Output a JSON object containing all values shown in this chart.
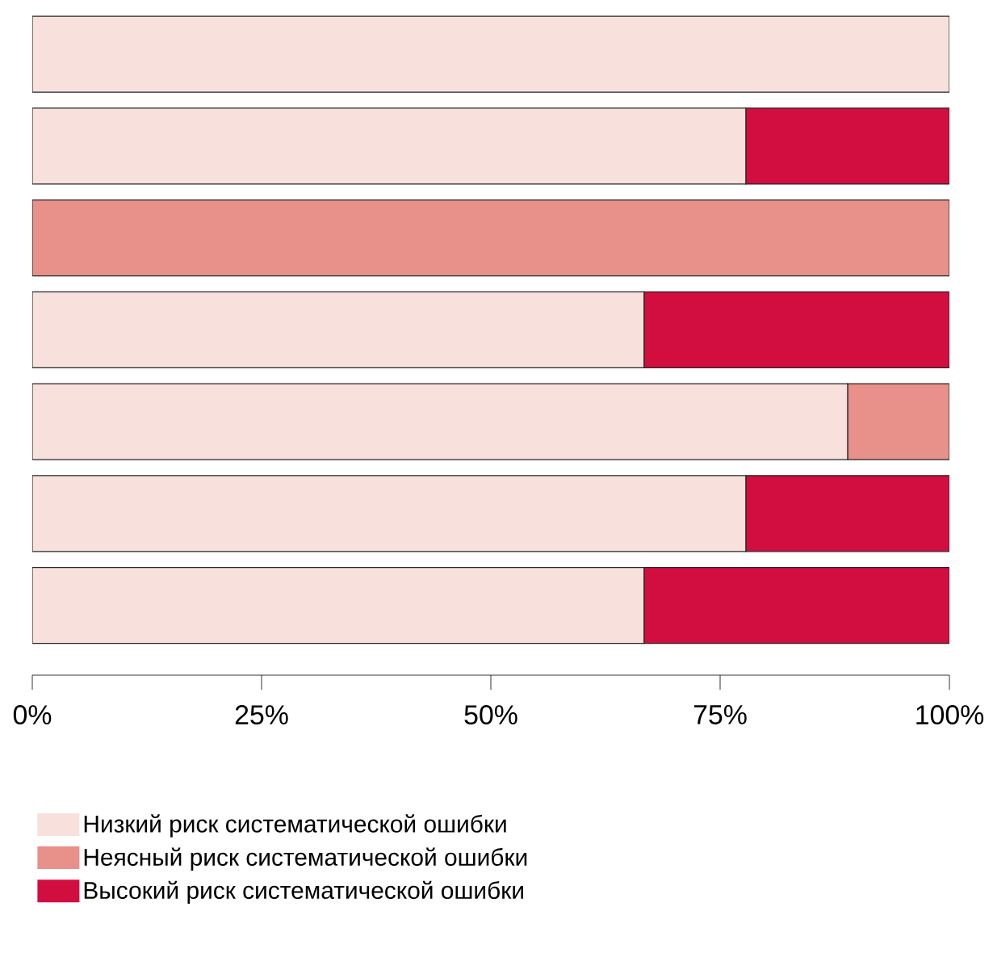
{
  "chart_data": {
    "type": "bar",
    "orientation": "horizontal",
    "stacked": true,
    "categories": [
      null,
      null,
      null,
      null,
      null,
      null,
      null
    ],
    "series": [
      {
        "name": "Низкий риск систематической ошибки",
        "color": "#f8e1dd",
        "values": [
          100,
          77.8,
          0,
          66.7,
          88.9,
          77.8,
          66.7
        ]
      },
      {
        "name": "Неясный риск систематической ошибки",
        "color": "#e8908a",
        "values": [
          0,
          0,
          100,
          0,
          11.1,
          0,
          0
        ]
      },
      {
        "name": "Высокий риск систематической ошибки",
        "color": "#d20d40",
        "values": [
          0,
          22.2,
          0,
          33.3,
          0,
          22.2,
          33.3
        ]
      }
    ],
    "xlim": [
      0,
      100
    ],
    "xticks": [
      {
        "value": 0,
        "label": "0%"
      },
      {
        "value": 25,
        "label": "25%"
      },
      {
        "value": 50,
        "label": "50%"
      },
      {
        "value": 75,
        "label": "75%"
      },
      {
        "value": 100,
        "label": "100%"
      }
    ],
    "grid": false,
    "legend": "bottom"
  }
}
